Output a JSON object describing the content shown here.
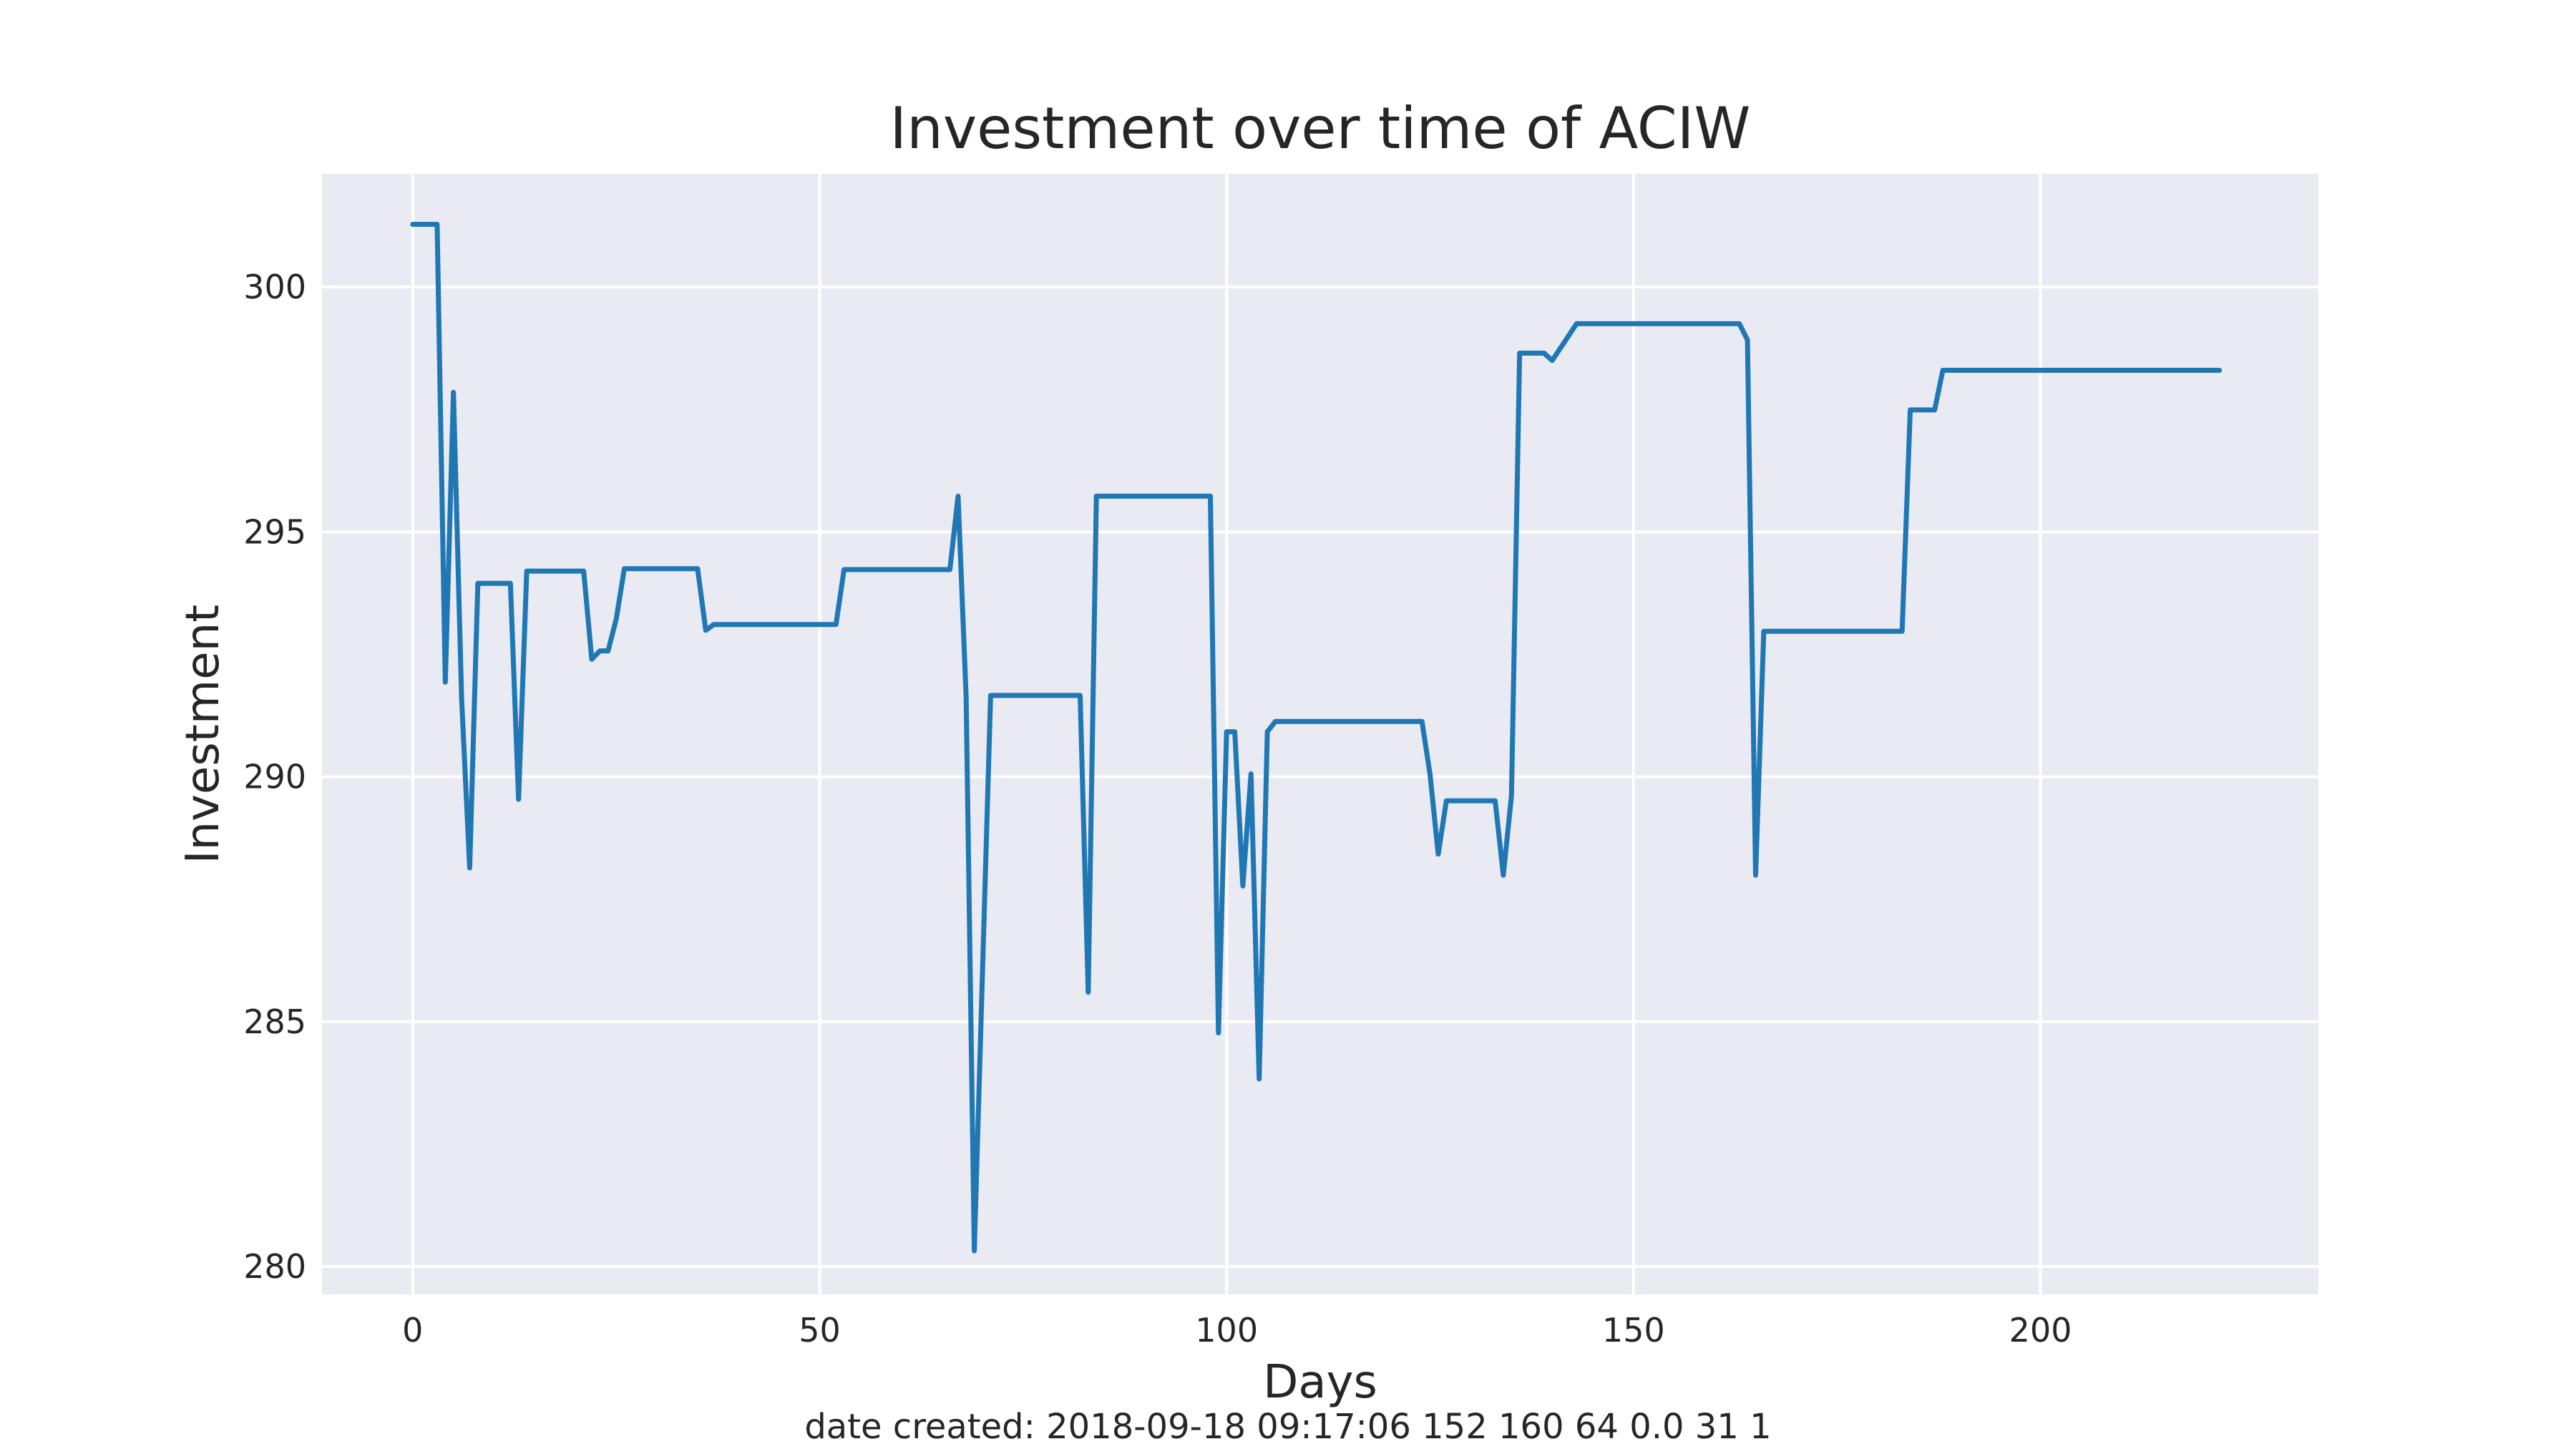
{
  "chart_data": {
    "type": "line",
    "title": "Investment over time of ACIW",
    "xlabel": "Days",
    "ylabel": "Investment",
    "caption": "date created: 2018-09-18 09:17:06 152 160 64 0.0 31 1",
    "xlim": [
      -11.15,
      234.15
    ],
    "ylim": [
      279.43,
      302.31
    ],
    "xticks": [
      0,
      50,
      100,
      150,
      200
    ],
    "yticks": [
      280,
      285,
      290,
      295,
      300
    ],
    "grid": true,
    "series": [
      {
        "name": "ACIW",
        "color": "#1f77b4",
        "x": [
          0,
          3,
          4,
          5,
          6,
          7,
          8,
          12,
          13,
          14,
          21,
          22,
          23,
          24,
          25,
          26,
          35,
          36,
          37,
          52,
          53,
          66,
          67,
          68,
          69,
          71,
          82,
          83,
          84,
          98,
          99,
          100,
          101,
          102,
          103,
          104,
          105,
          106,
          124,
          125,
          126,
          127,
          133,
          134,
          135,
          136,
          139,
          140,
          143,
          163,
          164,
          165,
          166,
          183,
          184,
          187,
          188,
          222
        ],
        "y": [
          301.28,
          301.28,
          291.93,
          297.85,
          291.6,
          288.14,
          293.95,
          293.95,
          289.54,
          294.2,
          294.2,
          292.4,
          292.57,
          292.57,
          293.22,
          294.25,
          294.25,
          292.99,
          293.11,
          293.11,
          294.23,
          294.23,
          295.73,
          291.62,
          280.32,
          291.66,
          291.66,
          285.6,
          295.73,
          295.73,
          284.77,
          290.92,
          290.92,
          287.77,
          290.06,
          283.83,
          290.92,
          291.13,
          291.13,
          290.05,
          288.42,
          289.51,
          289.51,
          287.99,
          289.61,
          298.65,
          298.65,
          298.5,
          299.25,
          299.25,
          298.92,
          287.99,
          292.97,
          292.97,
          297.49,
          297.49,
          298.3,
          298.3
        ]
      }
    ]
  },
  "style": {
    "background": "#ffffff",
    "plot_background": "#eaeaf2",
    "grid_color": "#ffffff",
    "text_color": "#262626"
  }
}
